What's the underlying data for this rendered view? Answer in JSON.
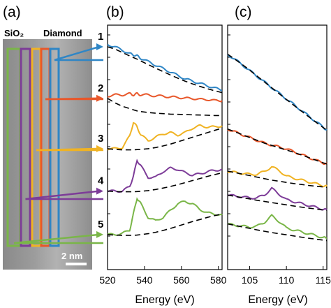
{
  "figure": {
    "panel_labels": {
      "a": "(a)",
      "b": "(b)",
      "c": "(c)"
    },
    "micrograph": {
      "left_label": "SiO₂",
      "right_label": "Diamond",
      "scale_bar": "2 nm",
      "box_colors": [
        "#7ab648",
        "#7d3c98",
        "#f0b323",
        "#e8572a",
        "#2f86c6"
      ]
    }
  },
  "chart_data": [
    {
      "type": "line",
      "panel": "(b)",
      "xlabel": "Energy (eV)",
      "ylabel": "",
      "xlim": [
        520,
        582
      ],
      "ylim": [
        0,
        10
      ],
      "xticks": [
        520,
        540,
        560,
        580
      ],
      "grid": false,
      "x": [
        520,
        524,
        528,
        532,
        534,
        536,
        538,
        542,
        546,
        550,
        554,
        558,
        562,
        566,
        570,
        574,
        578,
        582
      ],
      "series": [
        {
          "label": "1",
          "color": "#2f86c6",
          "values": [
            9.4,
            9.3,
            9.15,
            9.0,
            8.95,
            8.9,
            8.8,
            8.65,
            8.5,
            8.35,
            8.2,
            8.05,
            7.9,
            7.8,
            7.7,
            7.6,
            7.5,
            7.4
          ],
          "baseline": [
            9.3,
            9.2,
            9.05,
            8.9,
            8.83,
            8.76,
            8.68,
            8.52,
            8.37,
            8.22,
            8.07,
            7.93,
            7.8,
            7.68,
            7.57,
            7.47,
            7.38,
            7.3
          ]
        },
        {
          "label": "2",
          "color": "#e8572a",
          "values": [
            7.15,
            7.2,
            7.2,
            7.25,
            7.2,
            7.25,
            7.2,
            7.2,
            7.15,
            7.15,
            7.1,
            7.1,
            7.05,
            7.05,
            7.0,
            7.0,
            6.95,
            6.95
          ],
          "baseline": [
            7.05,
            6.85,
            6.7,
            6.6,
            6.55,
            6.5,
            6.47,
            6.43,
            6.4,
            6.38,
            6.36,
            6.35,
            6.34,
            6.33,
            6.32,
            6.31,
            6.3,
            6.3
          ]
        },
        {
          "label": "3",
          "color": "#f0b323",
          "values": [
            4.85,
            4.85,
            4.9,
            5.4,
            6.0,
            5.8,
            5.45,
            5.2,
            5.35,
            5.5,
            5.55,
            5.45,
            5.55,
            5.75,
            5.85,
            5.8,
            5.8,
            5.85
          ],
          "baseline": [
            4.85,
            4.82,
            4.8,
            4.8,
            4.8,
            4.81,
            4.82,
            4.85,
            4.9,
            4.97,
            5.05,
            5.15,
            5.25,
            5.35,
            5.45,
            5.55,
            5.65,
            5.75
          ]
        },
        {
          "label": "4",
          "color": "#7d3c98",
          "values": [
            3.0,
            3.0,
            3.0,
            3.2,
            3.65,
            4.35,
            4.1,
            3.6,
            3.6,
            3.85,
            4.0,
            3.95,
            3.8,
            3.7,
            3.75,
            3.85,
            3.9,
            3.95
          ],
          "baseline": [
            3.0,
            2.98,
            2.97,
            2.97,
            2.97,
            2.98,
            2.99,
            3.02,
            3.07,
            3.13,
            3.2,
            3.28,
            3.37,
            3.46,
            3.55,
            3.64,
            3.72,
            3.8
          ]
        },
        {
          "label": "5",
          "color": "#7ab648",
          "values": [
            1.1,
            1.1,
            1.15,
            1.3,
            2.0,
            2.7,
            2.45,
            1.85,
            1.7,
            1.85,
            2.15,
            2.45,
            2.55,
            2.45,
            2.2,
            2.05,
            2.0,
            1.95
          ],
          "baseline": [
            1.1,
            1.08,
            1.07,
            1.07,
            1.07,
            1.08,
            1.1,
            1.14,
            1.2,
            1.28,
            1.37,
            1.47,
            1.57,
            1.67,
            1.76,
            1.85,
            1.93,
            2.0
          ]
        }
      ]
    },
    {
      "type": "line",
      "panel": "(c)",
      "xlabel": "Energy (eV)",
      "ylabel": "",
      "xlim": [
        102,
        115.5
      ],
      "ylim": [
        0,
        10
      ],
      "xticks": [
        105,
        110,
        115
      ],
      "grid": false,
      "x": [
        102,
        103,
        104,
        105,
        106,
        107,
        108,
        109,
        110,
        111,
        112,
        113,
        114,
        115,
        115.5
      ],
      "series": [
        {
          "label": "1",
          "color": "#2f86c6",
          "values": [
            9.7,
            9.45,
            9.15,
            8.85,
            8.55,
            8.25,
            7.95,
            7.65,
            7.35,
            7.05,
            6.75,
            6.45,
            6.15,
            5.85,
            5.7
          ],
          "baseline": [
            9.72,
            9.45,
            9.17,
            8.87,
            8.56,
            8.25,
            7.94,
            7.63,
            7.32,
            7.01,
            6.71,
            6.41,
            6.12,
            5.83,
            5.7
          ]
        },
        {
          "label": "2",
          "color": "#e8572a",
          "values": [
            5.75,
            5.6,
            5.45,
            5.3,
            5.15,
            5.0,
            4.9,
            4.8,
            4.7,
            4.55,
            4.4,
            4.25,
            4.1,
            3.95,
            3.9
          ],
          "baseline": [
            5.75,
            5.6,
            5.45,
            5.3,
            5.15,
            5.0,
            4.88,
            4.76,
            4.64,
            4.52,
            4.38,
            4.24,
            4.1,
            3.96,
            3.9
          ]
        },
        {
          "label": "3",
          "color": "#f0b323",
          "values": [
            3.5,
            3.45,
            3.4,
            3.35,
            3.35,
            3.5,
            3.75,
            3.55,
            3.25,
            3.15,
            3.05,
            2.95,
            2.85,
            2.75,
            2.7
          ],
          "baseline": [
            3.52,
            3.44,
            3.36,
            3.28,
            3.2,
            3.12,
            3.04,
            2.98,
            2.92,
            2.86,
            2.81,
            2.76,
            2.72,
            2.68,
            2.66
          ]
        },
        {
          "label": "4",
          "color": "#7d3c98",
          "values": [
            2.25,
            2.2,
            2.15,
            2.1,
            2.1,
            2.25,
            2.6,
            2.3,
            2.0,
            1.9,
            1.8,
            1.7,
            1.6,
            1.5,
            1.45
          ],
          "baseline": [
            2.25,
            2.18,
            2.11,
            2.04,
            1.97,
            1.91,
            1.85,
            1.79,
            1.73,
            1.67,
            1.61,
            1.56,
            1.51,
            1.46,
            1.44
          ]
        },
        {
          "label": "5",
          "color": "#7ab648",
          "values": [
            0.7,
            0.65,
            0.6,
            0.55,
            0.6,
            0.8,
            1.15,
            0.85,
            0.5,
            0.4,
            0.3,
            0.2,
            0.1,
            0.0,
            -0.05
          ],
          "baseline": [
            0.72,
            0.64,
            0.56,
            0.48,
            0.4,
            0.33,
            0.26,
            0.2,
            0.14,
            0.08,
            0.02,
            -0.04,
            -0.09,
            -0.14,
            -0.17
          ]
        }
      ]
    }
  ]
}
